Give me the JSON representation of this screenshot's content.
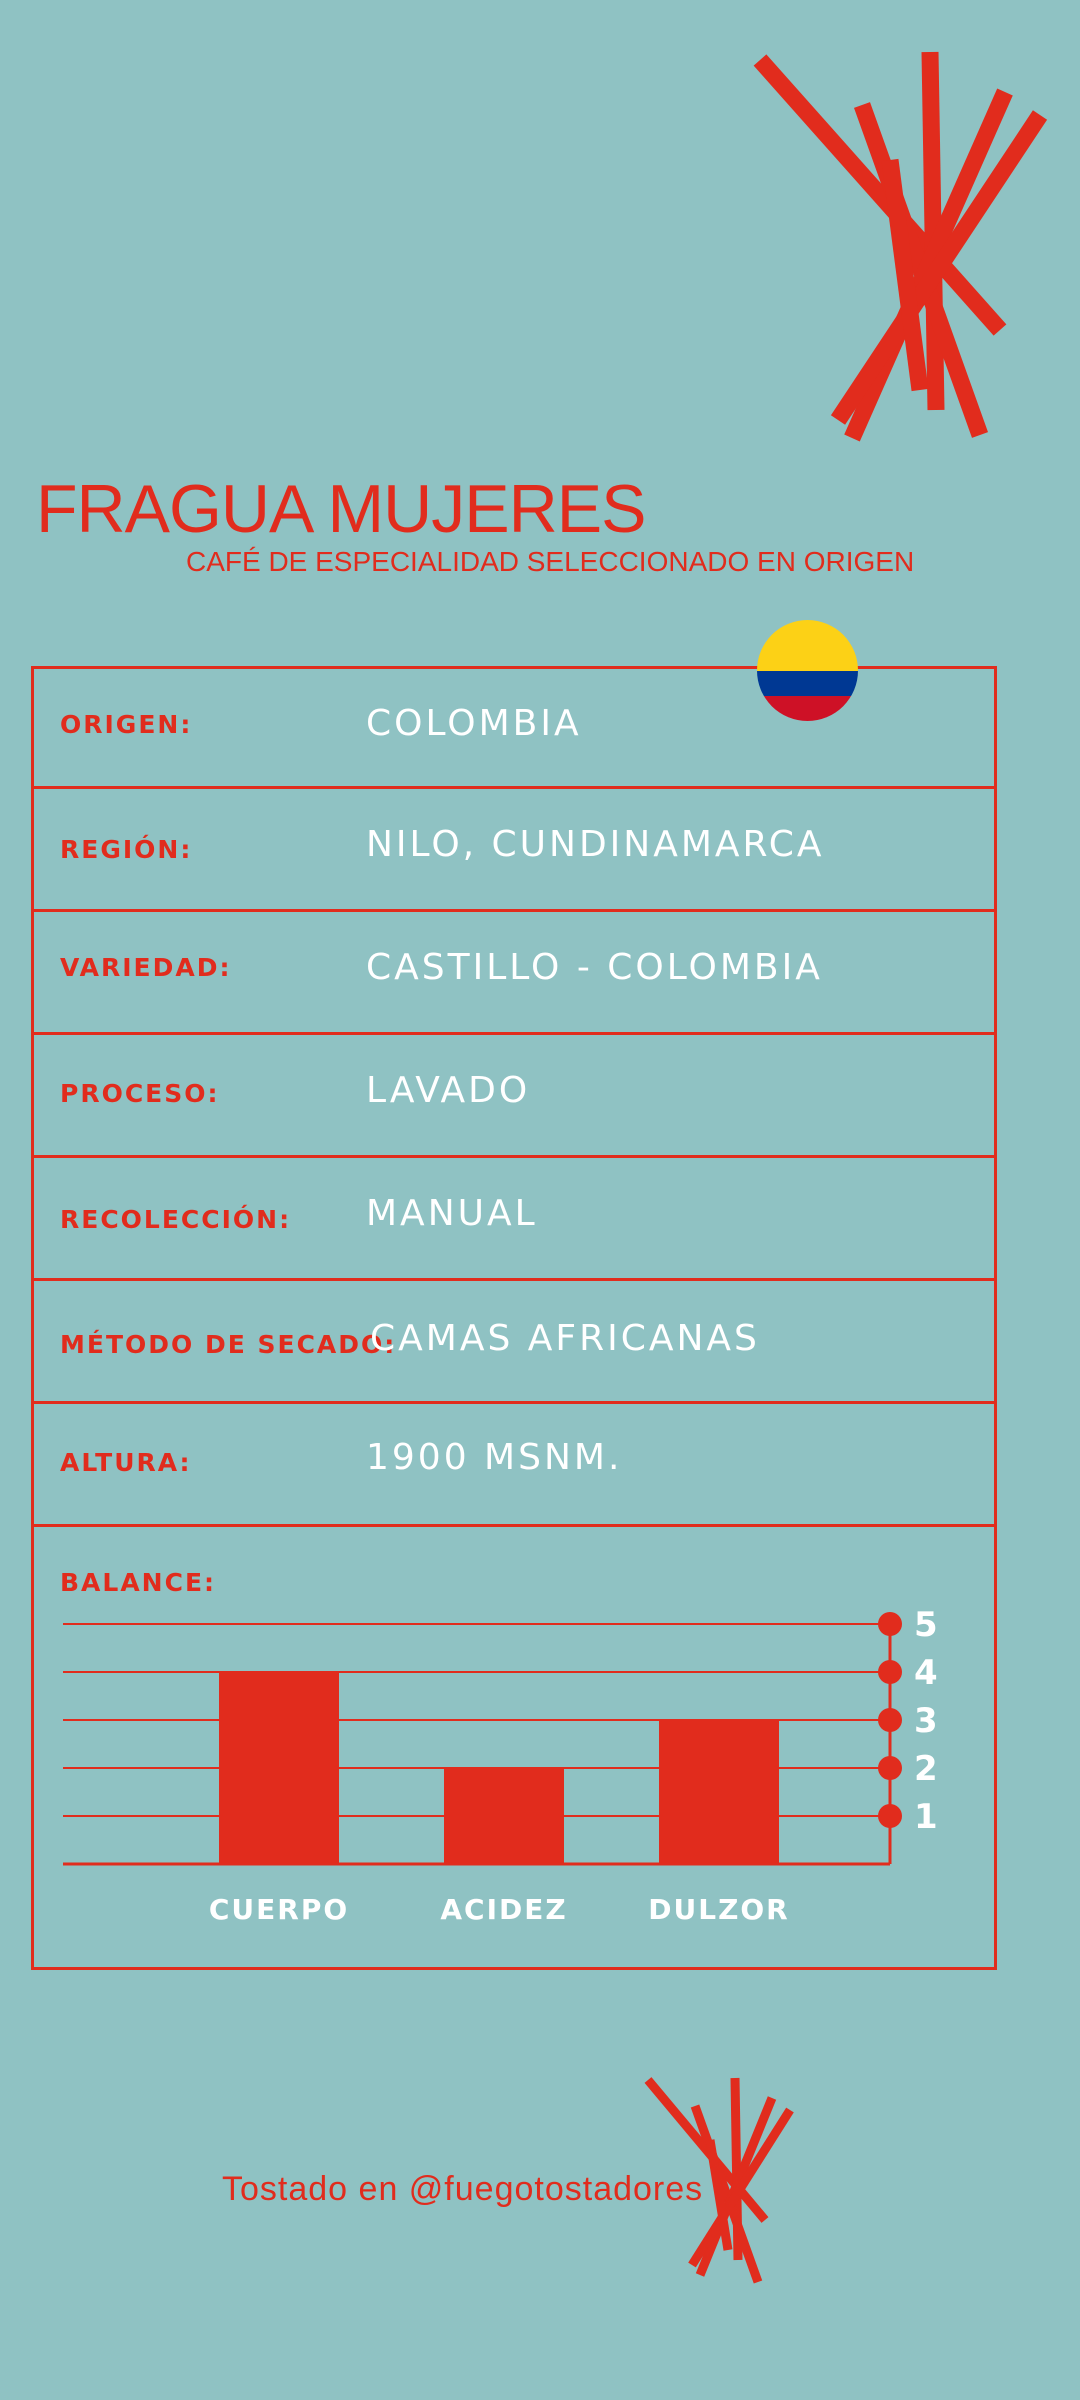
{
  "header": {
    "title": "FRAGUA MUJERES",
    "subtitle": "CAFÉ DE ESPECIALIDAD SELECCIONADO EN ORIGEN"
  },
  "details": [
    {
      "label": "ORIGEN:",
      "value": "COLOMBIA"
    },
    {
      "label": "REGIÓN:",
      "value": "NILO, CUNDINAMARCA"
    },
    {
      "label": "VARIEDAD:",
      "value": "CASTILLO - COLOMBIA"
    },
    {
      "label": "PROCESO:",
      "value": "LAVADO"
    },
    {
      "label": "RECOLECCIÓN:",
      "value": "MANUAL"
    },
    {
      "label": "MÉTODO DE SECADO:",
      "value": "CAMAS AFRICANAS"
    },
    {
      "label": "ALTURA:",
      "value": "1900 MSNM."
    }
  ],
  "flag": {
    "name": "colombia-flag",
    "colors": [
      "#fcd116",
      "#003893",
      "#ce1126"
    ]
  },
  "balance": {
    "label": "BALANCE:"
  },
  "chart_data": {
    "type": "bar",
    "categories": [
      "CUERPO",
      "ACIDEZ",
      "DULZOR"
    ],
    "values": [
      4,
      2,
      3
    ],
    "title": "",
    "xlabel": "",
    "ylabel": "",
    "ylim": [
      0,
      5
    ],
    "yticks": [
      "1",
      "2",
      "3",
      "4",
      "5"
    ],
    "grid": true,
    "bar_color": "#e12c1d"
  },
  "footer": {
    "text": "Tostado en @fuegotostadores"
  },
  "colors": {
    "background": "#8fc2c3",
    "accent": "#e12c1d",
    "text": "#ffffff"
  }
}
